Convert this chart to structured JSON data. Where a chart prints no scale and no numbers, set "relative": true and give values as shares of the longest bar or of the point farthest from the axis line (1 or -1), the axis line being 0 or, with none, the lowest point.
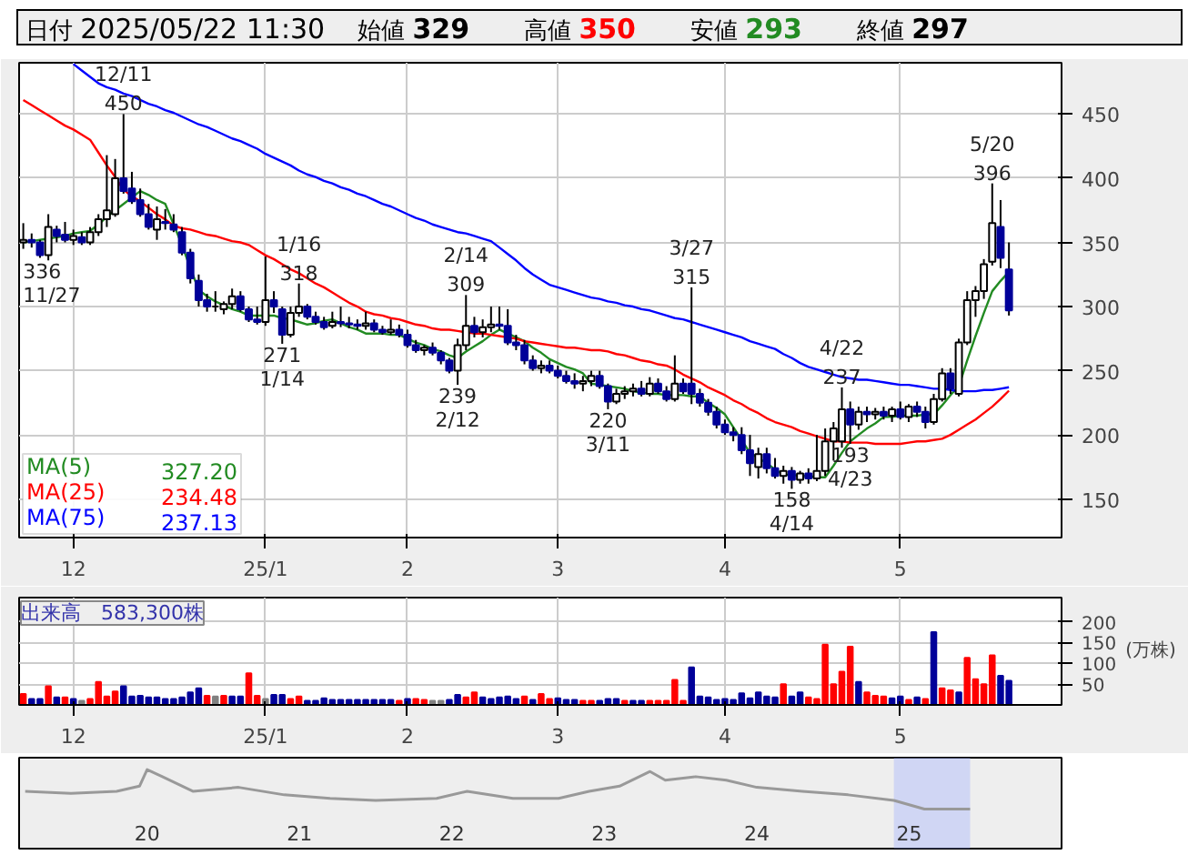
{
  "chart_data": [
    {
      "type": "candlestick",
      "annotations": [
        "日付",
        "2025/05/22 11:30",
        "始値",
        "329",
        "高値",
        "350",
        "安値",
        "293",
        "終値",
        "297",
        "327.20",
        "234.48",
        "237.13",
        {
          "text": "12/11\n450",
          "y": 450
        },
        {
          "text": "336\n11/27",
          "y": 336
        },
        {
          "text": "271\n1/14",
          "y": 271
        },
        {
          "text": "1/16\n318",
          "y": 318
        },
        {
          "text": "239\n2/12",
          "y": 239
        },
        {
          "text": "2/14\n309",
          "y": 309
        },
        {
          "text": "220\n3/11",
          "y": 220
        },
        {
          "text": "3/27\n315",
          "y": 315
        },
        {
          "text": "158\n4/14",
          "y": 158
        },
        {
          "text": "4/22\n237",
          "y": 237
        },
        {
          "text": "193\n4/23",
          "y": 193
        },
        {
          "text": "5/20\n396",
          "y": 396
        }
      ],
      "categories": [
        null,
        null,
        null,
        null,
        null,
        null,
        "12",
        null,
        null,
        null,
        null,
        null,
        null,
        null,
        null,
        null,
        null,
        null,
        null,
        null,
        null,
        null,
        null,
        null,
        null,
        null,
        null,
        null,
        null,
        "25/1",
        null,
        null,
        null,
        null,
        null,
        null,
        null,
        null,
        null,
        null,
        null,
        null,
        null,
        null,
        null,
        null,
        "2",
        null,
        null,
        null,
        null,
        null,
        null,
        null,
        null,
        null,
        null,
        null,
        null,
        null,
        null,
        null,
        null,
        null,
        "3",
        null,
        null,
        null,
        null,
        null,
        null,
        null,
        null,
        null,
        null,
        null,
        null,
        null,
        null,
        null,
        null,
        null,
        null,
        null,
        "4",
        null,
        null,
        null,
        null,
        null,
        null,
        null,
        null,
        null,
        null,
        null,
        null,
        null,
        null,
        null,
        null,
        null,
        null,
        null,
        null,
        "5",
        null,
        null,
        null,
        null,
        null,
        null,
        null,
        null,
        null,
        null,
        null,
        null,
        null
      ],
      "ohlc": [
        [
          350,
          365,
          345,
          352
        ],
        [
          352,
          357,
          346,
          350
        ],
        [
          350,
          352,
          338,
          340
        ],
        [
          340,
          372,
          336,
          362
        ],
        [
          360,
          363,
          350,
          355
        ],
        [
          356,
          366,
          350,
          352
        ],
        [
          352,
          360,
          348,
          355
        ],
        [
          354,
          358,
          348,
          350
        ],
        [
          350,
          362,
          348,
          358
        ],
        [
          358,
          372,
          355,
          368
        ],
        [
          368,
          418,
          362,
          375
        ],
        [
          372,
          415,
          370,
          400
        ],
        [
          400,
          450,
          388,
          390
        ],
        [
          392,
          405,
          380,
          382
        ],
        [
          383,
          392,
          370,
          372
        ],
        [
          372,
          380,
          360,
          362
        ],
        [
          360,
          378,
          352,
          368
        ],
        [
          366,
          376,
          360,
          365
        ],
        [
          364,
          372,
          358,
          360
        ],
        [
          358,
          362,
          340,
          342
        ],
        [
          342,
          345,
          318,
          322
        ],
        [
          320,
          325,
          300,
          305
        ],
        [
          305,
          310,
          296,
          300
        ],
        [
          300,
          312,
          296,
          300
        ],
        [
          298,
          304,
          294,
          302
        ],
        [
          302,
          314,
          298,
          308
        ],
        [
          308,
          312,
          296,
          298
        ],
        [
          298,
          300,
          288,
          290
        ],
        [
          290,
          300,
          286,
          288
        ],
        [
          288,
          339,
          285,
          305
        ],
        [
          305,
          312,
          295,
          300
        ],
        [
          298,
          300,
          271,
          278
        ],
        [
          278,
          300,
          276,
          295
        ],
        [
          295,
          318,
          292,
          300
        ],
        [
          300,
          302,
          290,
          292
        ],
        [
          292,
          296,
          286,
          288
        ],
        [
          288,
          292,
          282,
          284
        ],
        [
          285,
          296,
          283,
          288
        ],
        [
          288,
          300,
          284,
          287
        ],
        [
          287,
          292,
          283,
          286
        ],
        [
          286,
          290,
          282,
          285
        ],
        [
          285,
          296,
          282,
          287
        ],
        [
          287,
          290,
          280,
          282
        ],
        [
          282,
          285,
          278,
          280
        ],
        [
          280,
          290,
          278,
          282
        ],
        [
          282,
          286,
          276,
          278
        ],
        [
          278,
          282,
          268,
          270
        ],
        [
          270,
          274,
          264,
          266
        ],
        [
          266,
          270,
          262,
          268
        ],
        [
          268,
          272,
          262,
          264
        ],
        [
          264,
          266,
          255,
          258
        ],
        [
          258,
          260,
          248,
          250
        ],
        [
          250,
          275,
          239,
          270
        ],
        [
          270,
          309,
          266,
          285
        ],
        [
          285,
          292,
          276,
          280
        ],
        [
          280,
          290,
          276,
          284
        ],
        [
          284,
          300,
          280,
          286
        ],
        [
          286,
          300,
          282,
          285
        ],
        [
          285,
          298,
          270,
          272
        ],
        [
          272,
          278,
          266,
          270
        ],
        [
          270,
          274,
          255,
          258
        ],
        [
          258,
          262,
          250,
          252
        ],
        [
          252,
          258,
          248,
          254
        ],
        [
          254,
          258,
          248,
          250
        ],
        [
          250,
          254,
          244,
          246
        ],
        [
          246,
          250,
          240,
          242
        ],
        [
          242,
          248,
          236,
          240
        ],
        [
          240,
          246,
          234,
          242
        ],
        [
          242,
          250,
          238,
          246
        ],
        [
          246,
          250,
          236,
          238
        ],
        [
          238,
          240,
          220,
          226
        ],
        [
          226,
          236,
          224,
          232
        ],
        [
          232,
          238,
          228,
          234
        ],
        [
          234,
          240,
          230,
          236
        ],
        [
          236,
          242,
          230,
          232
        ],
        [
          232,
          245,
          230,
          240
        ],
        [
          240,
          244,
          232,
          234
        ],
        [
          234,
          238,
          226,
          228
        ],
        [
          228,
          262,
          226,
          240
        ],
        [
          240,
          244,
          232,
          234
        ],
        [
          240,
          315,
          224,
          232
        ],
        [
          232,
          236,
          222,
          225
        ],
        [
          225,
          228,
          215,
          218
        ],
        [
          218,
          222,
          205,
          208
        ],
        [
          208,
          212,
          200,
          202
        ],
        [
          202,
          206,
          195,
          200
        ],
        [
          200,
          206,
          185,
          188
        ],
        [
          188,
          200,
          168,
          178
        ],
        [
          175,
          190,
          166,
          185
        ],
        [
          185,
          190,
          170,
          174
        ],
        [
          174,
          182,
          166,
          168
        ],
        [
          168,
          176,
          162,
          172
        ],
        [
          172,
          175,
          158,
          165
        ],
        [
          165,
          172,
          162,
          170
        ],
        [
          170,
          174,
          162,
          166
        ],
        [
          166,
          200,
          164,
          172
        ],
        [
          172,
          205,
          168,
          195
        ],
        [
          195,
          210,
          180,
          205
        ],
        [
          195,
          237,
          190,
          220
        ],
        [
          220,
          226,
          193,
          208
        ],
        [
          208,
          222,
          204,
          218
        ],
        [
          218,
          222,
          210,
          216
        ],
        [
          216,
          221,
          212,
          218
        ],
        [
          218,
          222,
          212,
          215
        ],
        [
          215,
          222,
          210,
          220
        ],
        [
          220,
          226,
          212,
          214
        ],
        [
          214,
          224,
          210,
          222
        ],
        [
          222,
          226,
          214,
          218
        ],
        [
          218,
          222,
          205,
          210
        ],
        [
          210,
          232,
          208,
          228
        ],
        [
          228,
          252,
          226,
          248
        ],
        [
          248,
          252,
          232,
          236
        ],
        [
          232,
          275,
          230,
          272
        ],
        [
          272,
          312,
          270,
          305
        ],
        [
          305,
          316,
          292,
          312
        ],
        [
          312,
          337,
          306,
          333
        ],
        [
          335,
          396,
          332,
          365
        ],
        [
          362,
          383,
          330,
          338
        ],
        [
          329,
          350,
          293,
          297
        ]
      ],
      "series": [
        {
          "name": "MA(5)",
          "type": "line",
          "color": "#228b22",
          "values": [
            350,
            351,
            352,
            353,
            354,
            355,
            357,
            358,
            359,
            364,
            370,
            375,
            380,
            385,
            390,
            387,
            383,
            380,
            364,
            348,
            330,
            313,
            308,
            304,
            301,
            298,
            296,
            293,
            293,
            293,
            293,
            291,
            290,
            288,
            286,
            287,
            289,
            290,
            287,
            284,
            282,
            279,
            279,
            279,
            278,
            278,
            275,
            272,
            270,
            267,
            265,
            262,
            260,
            265,
            269,
            273,
            278,
            282,
            279,
            276,
            273,
            268,
            264,
            259,
            256,
            253,
            251,
            248,
            240,
            239,
            238,
            237,
            236,
            234,
            233,
            232,
            232,
            231,
            231,
            231,
            230,
            230,
            225,
            221,
            216,
            206,
            196,
            186,
            182,
            178,
            173,
            169,
            169,
            168,
            168,
            167,
            167,
            176,
            186,
            195,
            200,
            205,
            209,
            214,
            214,
            215,
            215,
            215,
            216,
            216,
            223,
            231,
            238,
            258,
            277,
            295,
            312,
            320,
            327.2
          ]
        },
        {
          "name": "MA(25)",
          "type": "line",
          "color": "#ff0000",
          "values": [
            461,
            457,
            453,
            449,
            445,
            441,
            438,
            434,
            430,
            420,
            410,
            401,
            391,
            386,
            382,
            377,
            372,
            368,
            363,
            361,
            360,
            358,
            356,
            355,
            353,
            351,
            350,
            348,
            344,
            340,
            337,
            333,
            329,
            326,
            322,
            318,
            315,
            311,
            307,
            303,
            300,
            296,
            294,
            293,
            291,
            290,
            288,
            286,
            285,
            283,
            282,
            282,
            281,
            280,
            279,
            279,
            278,
            277,
            276,
            275,
            273,
            272,
            271,
            270,
            269,
            268,
            268,
            267,
            266,
            266,
            265,
            263,
            262,
            260,
            258,
            257,
            255,
            254,
            251,
            247,
            244,
            241,
            237,
            234,
            231,
            227,
            224,
            220,
            217,
            213,
            210,
            208,
            206,
            203,
            201,
            199,
            197,
            195,
            195,
            194,
            194,
            194,
            193,
            193,
            193,
            193,
            194,
            195,
            195,
            196,
            197,
            200,
            204,
            208,
            212,
            217,
            222,
            228,
            234.48
          ]
        },
        {
          "name": "MA(75)",
          "type": "line",
          "color": "#0000ff",
          "values": [
            null,
            null,
            null,
            null,
            null,
            null,
            489,
            484,
            479,
            474,
            471,
            469,
            466,
            464,
            461,
            458,
            456,
            453,
            451,
            448,
            445,
            442,
            440,
            437,
            434,
            431,
            429,
            426,
            423,
            419,
            416,
            413,
            410,
            406,
            403,
            401,
            398,
            396,
            393,
            391,
            388,
            386,
            383,
            380,
            378,
            375,
            372,
            369,
            367,
            364,
            362,
            360,
            358,
            357,
            355,
            353,
            351,
            346,
            341,
            336,
            330,
            325,
            321,
            317,
            315,
            313,
            311,
            309,
            307,
            306,
            304,
            303,
            301,
            300,
            298,
            297,
            295,
            293,
            291,
            290,
            288,
            286,
            284,
            282,
            280,
            278,
            276,
            273,
            271,
            269,
            267,
            263,
            260,
            256,
            253,
            251,
            249,
            247,
            245,
            244,
            243,
            243,
            242,
            241,
            240,
            239,
            239,
            238,
            237,
            236,
            236,
            235,
            234,
            234,
            234,
            235,
            235,
            236,
            237.13
          ]
        }
      ],
      "ylim": [
        120,
        490
      ],
      "yticks": [
        150,
        200,
        250,
        300,
        350,
        400,
        450
      ],
      "grid": true,
      "legend": "bottom left"
    },
    {
      "type": "bar",
      "annotations": [
        "出来高　583,300株"
      ],
      "ylabel": "(万株)",
      "categories": [
        null,
        null,
        null,
        null,
        null,
        null,
        "12",
        null,
        null,
        null,
        null,
        null,
        null,
        null,
        null,
        null,
        null,
        null,
        null,
        null,
        null,
        null,
        null,
        null,
        null,
        null,
        null,
        null,
        null,
        "25/1",
        null,
        null,
        null,
        null,
        null,
        null,
        null,
        null,
        null,
        null,
        null,
        null,
        null,
        null,
        null,
        null,
        "2",
        null,
        null,
        null,
        null,
        null,
        null,
        null,
        null,
        null,
        null,
        null,
        null,
        null,
        null,
        null,
        null,
        null,
        "3",
        null,
        null,
        null,
        null,
        null,
        null,
        null,
        null,
        null,
        null,
        null,
        null,
        null,
        null,
        null,
        null,
        null,
        null,
        null,
        "4",
        null,
        null,
        null,
        null,
        null,
        null,
        null,
        null,
        null,
        null,
        null,
        null,
        null,
        null,
        null,
        null,
        null,
        null,
        null,
        null,
        "5",
        null,
        null,
        null,
        null,
        null,
        null,
        null,
        null,
        null,
        null,
        null,
        null,
        null
      ],
      "values": [
        26,
        14,
        14,
        45,
        18,
        18,
        14,
        10,
        14,
        55,
        20,
        32,
        45,
        20,
        22,
        18,
        18,
        14,
        14,
        18,
        30,
        40,
        22,
        20,
        22,
        20,
        20,
        76,
        22,
        14,
        24,
        24,
        14,
        20,
        10,
        10,
        16,
        12,
        12,
        12,
        12,
        12,
        12,
        12,
        12,
        10,
        14,
        14,
        12,
        10,
        10,
        12,
        24,
        18,
        30,
        18,
        14,
        18,
        20,
        14,
        20,
        12,
        26,
        14,
        16,
        12,
        12,
        10,
        10,
        10,
        14,
        14,
        10,
        10,
        10,
        10,
        10,
        10,
        60,
        10,
        90,
        20,
        18,
        12,
        14,
        12,
        28,
        16,
        30,
        20,
        18,
        50,
        20,
        30,
        18,
        14,
        145,
        50,
        80,
        140,
        55,
        30,
        22,
        20,
        16,
        20,
        12,
        18,
        14,
        175,
        40,
        35,
        30,
        113,
        62,
        50,
        119,
        70,
        58
      ],
      "colors": [
        "#ff0000",
        "#000099",
        "#000099",
        "#ff0000",
        "#000099",
        "#ff0000",
        "#000099",
        "#808080",
        "#ff0000",
        "#ff0000",
        "#ff0000",
        "#ff0000",
        "#000099",
        "#000099",
        "#000099",
        "#000099",
        "#000099",
        "#000099",
        "#000099",
        "#000099",
        "#000099",
        "#000099",
        "#ff0000",
        "#808080",
        "#ff0000",
        "#000099",
        "#000099",
        "#ff0000",
        "#ff0000",
        "#808080",
        "#000099",
        "#000099",
        "#ff0000",
        "#ff0000",
        "#000099",
        "#000099",
        "#000099",
        "#000099",
        "#000099",
        "#000099",
        "#000099",
        "#000099",
        "#000099",
        "#000099",
        "#000099",
        "#ff0000",
        "#000099",
        "#ff0000",
        "#ff0000",
        "#808080",
        "#808080",
        "#000099",
        "#000099",
        "#ff0000",
        "#ff0000",
        "#000099",
        "#000099",
        "#000099",
        "#000099",
        "#000099",
        "#ff0000",
        "#000099",
        "#ff0000",
        "#ff0000",
        "#000099",
        "#000099",
        "#000099",
        "#ff0000",
        "#ff0000",
        "#000099",
        "#000099",
        "#000099",
        "#ff0000",
        "#000099",
        "#000099",
        "#ff0000",
        "#ff0000",
        "#ff0000",
        "#ff0000",
        "#ff0000",
        "#000099",
        "#000099",
        "#000099",
        "#000099",
        "#000099",
        "#000099",
        "#000099",
        "#000099",
        "#000099",
        "#000099",
        "#000099",
        "#ff0000",
        "#000099",
        "#000099",
        "#ff0000",
        "#ff0000",
        "#ff0000",
        "#ff0000",
        "#ff0000",
        "#ff0000",
        "#000099",
        "#ff0000",
        "#ff0000",
        "#ff0000",
        "#000099",
        "#000099",
        "#ff0000",
        "#000099",
        "#ff0000",
        "#000099",
        "#ff0000",
        "#ff0000",
        "#000099",
        "#ff0000",
        "#ff0000",
        "#ff0000",
        "#ff0000",
        "#000099",
        "#000099"
      ],
      "ylim": [
        0,
        258
      ],
      "yticks": [
        50,
        100,
        150,
        200
      ],
      "grid": true
    },
    {
      "type": "line",
      "relative": true,
      "tick_labels": "x",
      "x": [
        2019.2,
        2019.5,
        2019.8,
        2019.95,
        2020.0,
        2020.1,
        2020.3,
        2020.6,
        2020.9,
        2021.2,
        2021.5,
        2021.9,
        2022.1,
        2022.4,
        2022.7,
        2022.9,
        2023.1,
        2023.3,
        2023.4,
        2023.6,
        2023.8,
        2024.0,
        2024.3,
        2024.6,
        2024.9,
        2025.1,
        2025.4
      ],
      "values": [
        0.45,
        0.4,
        0.45,
        0.58,
        1,
        0.82,
        0.45,
        0.55,
        0.36,
        0.27,
        0.22,
        0.27,
        0.45,
        0.27,
        0.27,
        0.45,
        0.58,
        0.95,
        0.73,
        0.82,
        0.73,
        0.55,
        0.45,
        0.36,
        0.22,
        0,
        0
      ],
      "color": "#999999",
      "xlim": [
        2019.16,
        2026.0
      ],
      "xticks": [
        {
          "value": 2020,
          "label": "20"
        },
        {
          "value": 2021,
          "label": "21"
        },
        {
          "value": 2022,
          "label": "22"
        },
        {
          "value": 2023,
          "label": "23"
        },
        {
          "value": 2024,
          "label": "24"
        },
        {
          "value": 2025,
          "label": "25"
        }
      ],
      "bands": [
        {
          "axis": "x",
          "from": 2024.9,
          "to": 2025.4,
          "color": "#99aaff"
        }
      ],
      "grid": false
    }
  ]
}
